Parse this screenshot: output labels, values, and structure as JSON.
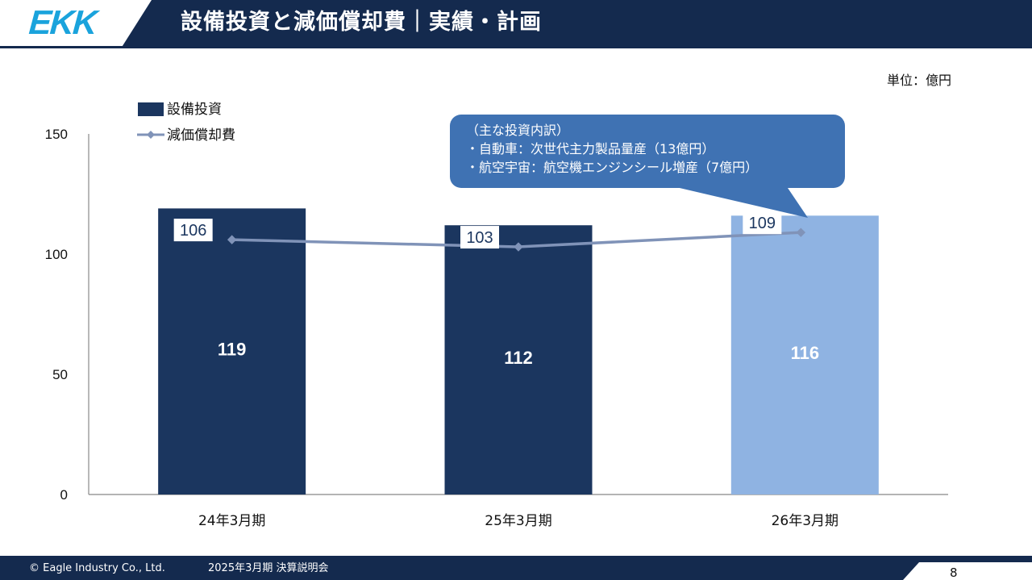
{
  "header": {
    "logo": "EKK",
    "title": "設備投資と減価償却費｜実績・計画"
  },
  "unit": "単位：億円",
  "callout": {
    "lines": [
      "（主な投資内訳）",
      "・自動車：次世代主力製品量産（13億円）",
      "・航空宇宙：航空機エンジンシール増産（7億円）"
    ]
  },
  "chart_data": {
    "type": "bar",
    "categories": [
      "24年3月期",
      "25年3月期",
      "26年3月期"
    ],
    "series": [
      {
        "name": "設備投資",
        "type": "bar",
        "values": [
          119,
          112,
          116
        ],
        "labels": [
          "119",
          "112",
          "116"
        ],
        "colors": [
          "#1b365f",
          "#1b365f",
          "#8fb3e2"
        ]
      },
      {
        "name": "減価償却費",
        "type": "line",
        "values": [
          106,
          103,
          109
        ],
        "labels": [
          "106",
          "103",
          "109"
        ],
        "color": "#8093b8"
      }
    ],
    "ylim": [
      0,
      150
    ],
    "yticks": [
      "0",
      "50",
      "100",
      "150"
    ],
    "legend": "top-left",
    "grid": false
  },
  "footer": {
    "copyright": "© Eagle Industry Co., Ltd.",
    "event": "2025年3月期 決算説明会",
    "page": "8"
  }
}
